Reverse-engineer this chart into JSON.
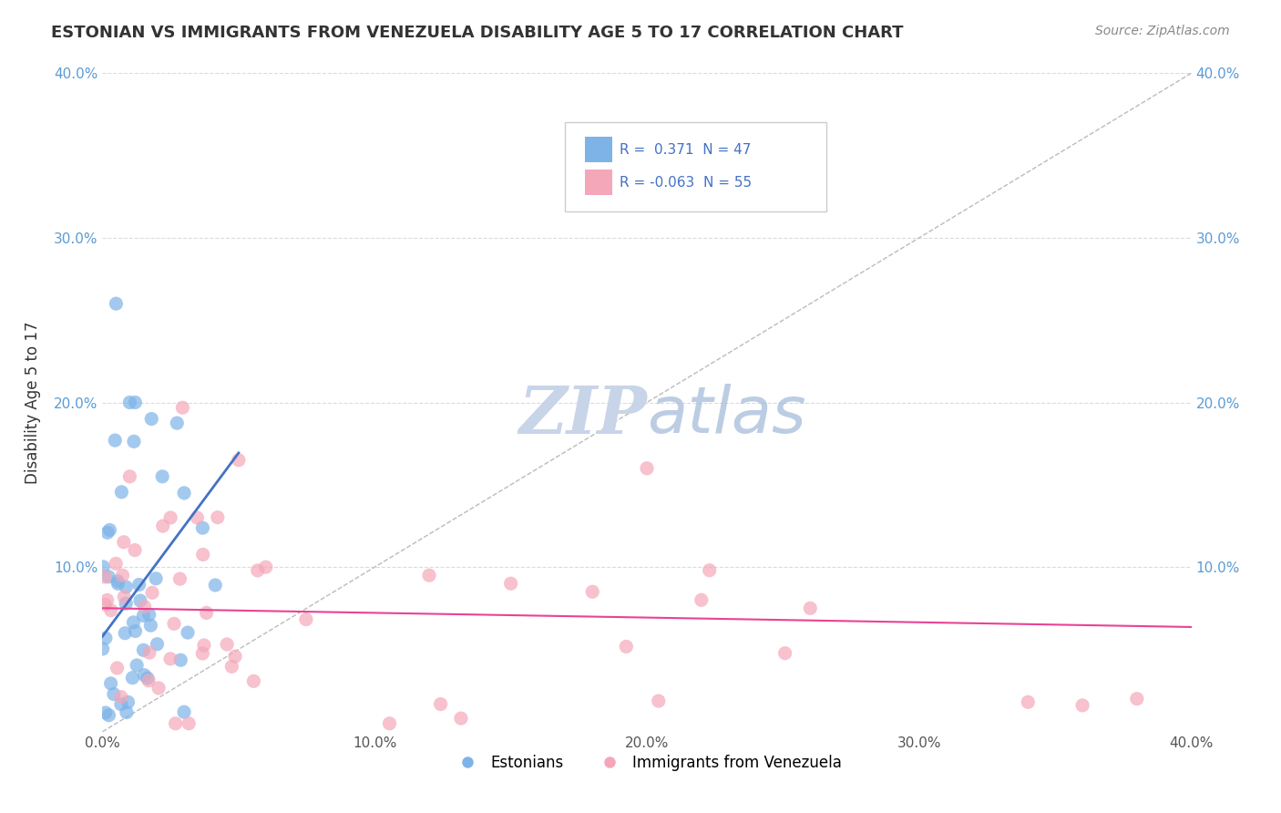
{
  "title": "ESTONIAN VS IMMIGRANTS FROM VENEZUELA DISABILITY AGE 5 TO 17 CORRELATION CHART",
  "source": "Source: ZipAtlas.com",
  "ylabel": "Disability Age 5 to 17",
  "xlim": [
    0.0,
    0.4
  ],
  "ylim": [
    0.0,
    0.4
  ],
  "xtick_vals": [
    0.0,
    0.1,
    0.2,
    0.3,
    0.4
  ],
  "ytick_vals": [
    0.0,
    0.1,
    0.2,
    0.3,
    0.4
  ],
  "legend_label1": "Estonians",
  "legend_label2": "Immigrants from Venezuela",
  "R1": 0.371,
  "N1": 47,
  "R2": -0.063,
  "N2": 55,
  "color_blue": "#7EB3E8",
  "color_pink": "#F4A7B9",
  "line_blue": "#4472C4",
  "line_pink": "#E84393",
  "background_color": "#FFFFFF",
  "grid_color": "#CCCCCC"
}
